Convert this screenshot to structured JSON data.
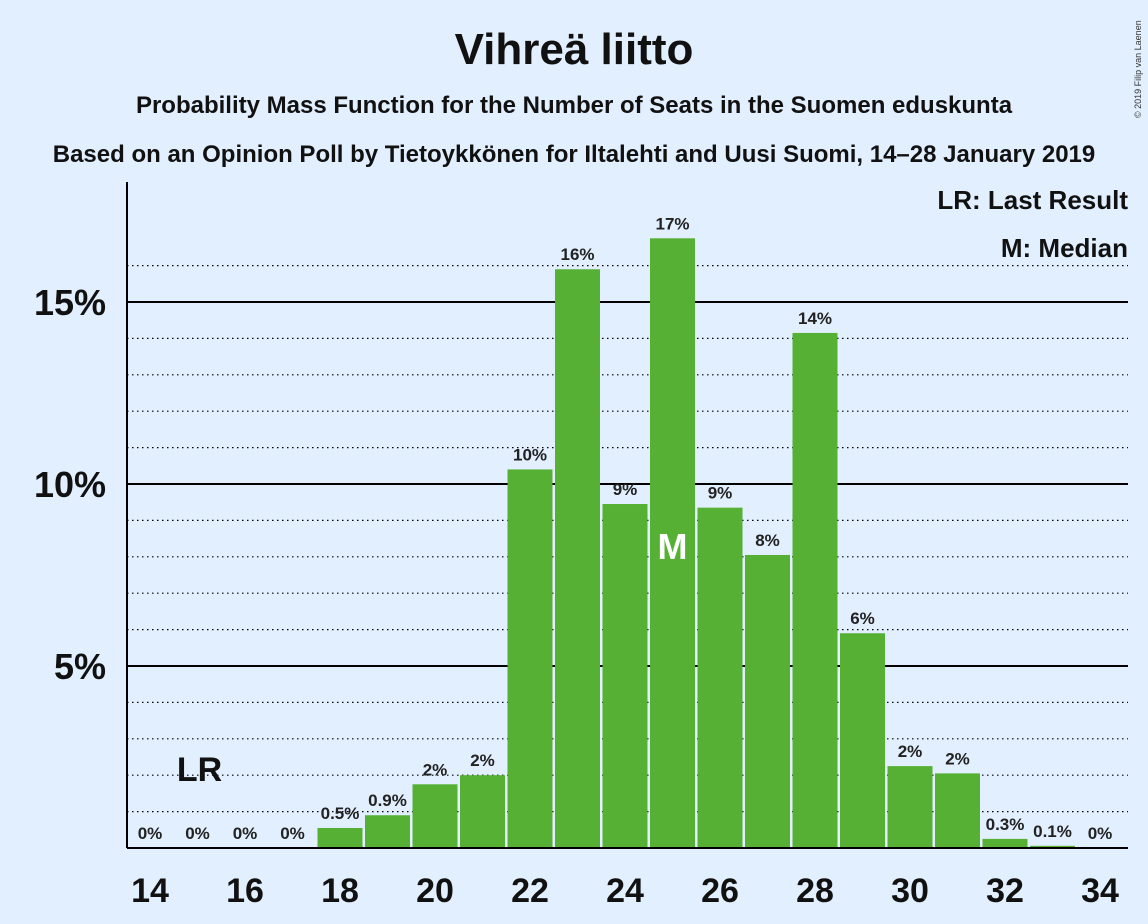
{
  "chart_data": {
    "type": "bar",
    "title": "Vihreä liitto",
    "subtitle": "Probability Mass Function for the Number of Seats in the Suomen eduskunta",
    "subtitle2": "Based on an Opinion Poll by Tietoykkönen for Iltalehti and Uusi Suomi, 14–28 January 2019",
    "copyright": "© 2019 Filip van Laenen",
    "x": [
      14,
      15,
      16,
      17,
      18,
      19,
      20,
      21,
      22,
      23,
      24,
      25,
      26,
      27,
      28,
      29,
      30,
      31,
      32,
      33,
      34
    ],
    "values": [
      0,
      0,
      0,
      0,
      0.55,
      0.9,
      1.75,
      2.0,
      10.4,
      15.9,
      9.45,
      16.75,
      9.35,
      8.05,
      14.15,
      5.9,
      2.25,
      2.05,
      0.25,
      0.06,
      0
    ],
    "labels": [
      "0%",
      "0%",
      "0%",
      "0%",
      "0.5%",
      "0.9%",
      "2%",
      "2%",
      "10%",
      "16%",
      "9%",
      "17%",
      "9%",
      "8%",
      "14%",
      "6%",
      "2%",
      "2%",
      "0.3%",
      "0.1%",
      "0%"
    ],
    "xticks": [
      "14",
      "16",
      "18",
      "20",
      "22",
      "24",
      "26",
      "28",
      "30",
      "32",
      "34"
    ],
    "yticks": [
      "5%",
      "10%",
      "15%"
    ],
    "ylim": [
      0,
      18
    ],
    "last_result_seat": 15,
    "median_seat": 25,
    "last_result_marker": "LR",
    "median_marker": "M",
    "legend": [
      "LR: Last Result",
      "M: Median"
    ],
    "bar_color": "#55b033",
    "grid": true
  }
}
